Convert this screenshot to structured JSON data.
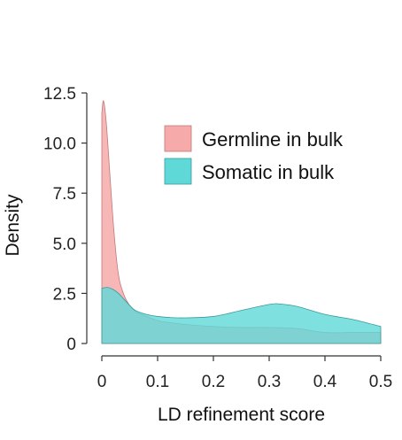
{
  "chart_data": {
    "type": "area",
    "title": "",
    "xlabel": "LD refinement score",
    "ylabel": "Density",
    "xlim": [
      0,
      0.5
    ],
    "ylim": [
      0,
      12.5
    ],
    "xticks": [
      0,
      0.1,
      0.2,
      0.3,
      0.4,
      0.5
    ],
    "xtick_labels": [
      "0",
      "0.1",
      "0.2",
      "0.3",
      "0.4",
      "0.5"
    ],
    "yticks": [
      0,
      2.5,
      5.0,
      7.5,
      10.0,
      12.5
    ],
    "ytick_labels": [
      "0",
      "2.5",
      "5.0",
      "7.5",
      "10.0",
      "12.5"
    ],
    "grid": false,
    "legend_position": "top-right",
    "series": [
      {
        "name": "Germline in bulk",
        "color": "#f7aaaa",
        "stroke": "#c07878",
        "x": [
          0,
          0.003,
          0.008,
          0.015,
          0.022,
          0.03,
          0.04,
          0.05,
          0.06,
          0.07,
          0.08,
          0.1,
          0.12,
          0.15,
          0.2,
          0.25,
          0.3,
          0.35,
          0.4,
          0.45,
          0.5
        ],
        "values": [
          11.5,
          12.1,
          11.0,
          8.2,
          5.5,
          3.4,
          2.4,
          1.9,
          1.6,
          1.45,
          1.35,
          1.15,
          1.05,
          0.95,
          0.85,
          0.8,
          0.8,
          0.75,
          0.55,
          0.55,
          0.55
        ]
      },
      {
        "name": "Somatic in bulk",
        "color": "#5fd8d8",
        "stroke": "#3a9a9a",
        "x": [
          0,
          0.01,
          0.02,
          0.03,
          0.04,
          0.05,
          0.06,
          0.08,
          0.1,
          0.12,
          0.15,
          0.2,
          0.25,
          0.3,
          0.32,
          0.35,
          0.4,
          0.45,
          0.5
        ],
        "values": [
          2.75,
          2.8,
          2.7,
          2.5,
          2.2,
          1.9,
          1.65,
          1.45,
          1.35,
          1.3,
          1.28,
          1.35,
          1.65,
          1.95,
          1.97,
          1.85,
          1.45,
          1.2,
          0.85
        ]
      }
    ]
  }
}
